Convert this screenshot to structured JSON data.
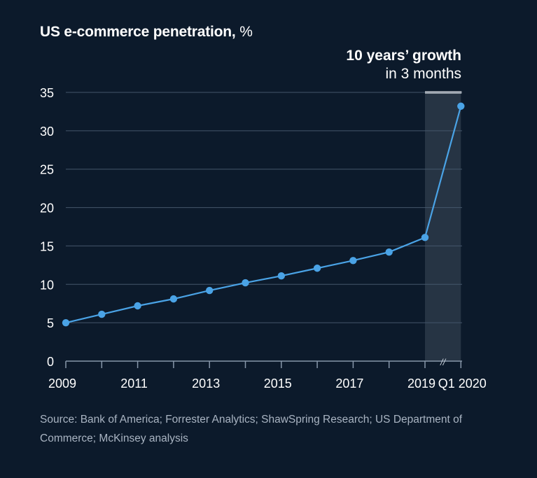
{
  "chart_data": {
    "type": "line",
    "title": "US e-commerce penetration,",
    "title_unit": "%",
    "xlabel": "",
    "ylabel": "",
    "x": [
      "2009",
      "2010",
      "2011",
      "2012",
      "2013",
      "2014",
      "2015",
      "2016",
      "2017",
      "2018",
      "2019",
      "Q1 2020"
    ],
    "x_tick_labels": [
      "2009",
      "2011",
      "2013",
      "2015",
      "2017",
      "2019",
      "Q1 2020"
    ],
    "series": [
      {
        "values": [
          5.0,
          6.1,
          7.2,
          8.1,
          9.2,
          10.2,
          11.1,
          12.1,
          13.1,
          14.2,
          16.1,
          33.2
        ]
      }
    ],
    "ylim": [
      0,
      35
    ],
    "yticks": [
      0,
      5,
      10,
      15,
      20,
      25,
      30,
      35
    ],
    "grid": true,
    "highlight": {
      "from": "2019",
      "to": "Q1 2020",
      "title": "10 years’ growth",
      "subtitle": "in 3 months"
    },
    "axis_break_symbol": "//",
    "colors": {
      "background": "#0c1a2b",
      "line": "#4aa3e6",
      "grid": "#44566b",
      "highlight_band": "#263444",
      "text": "#ffffff",
      "source_text": "#a9b4c2"
    }
  },
  "source": "Source: Bank of America; Forrester Analytics; ShawSpring Research; US Department of Commerce; McKinsey analysis"
}
